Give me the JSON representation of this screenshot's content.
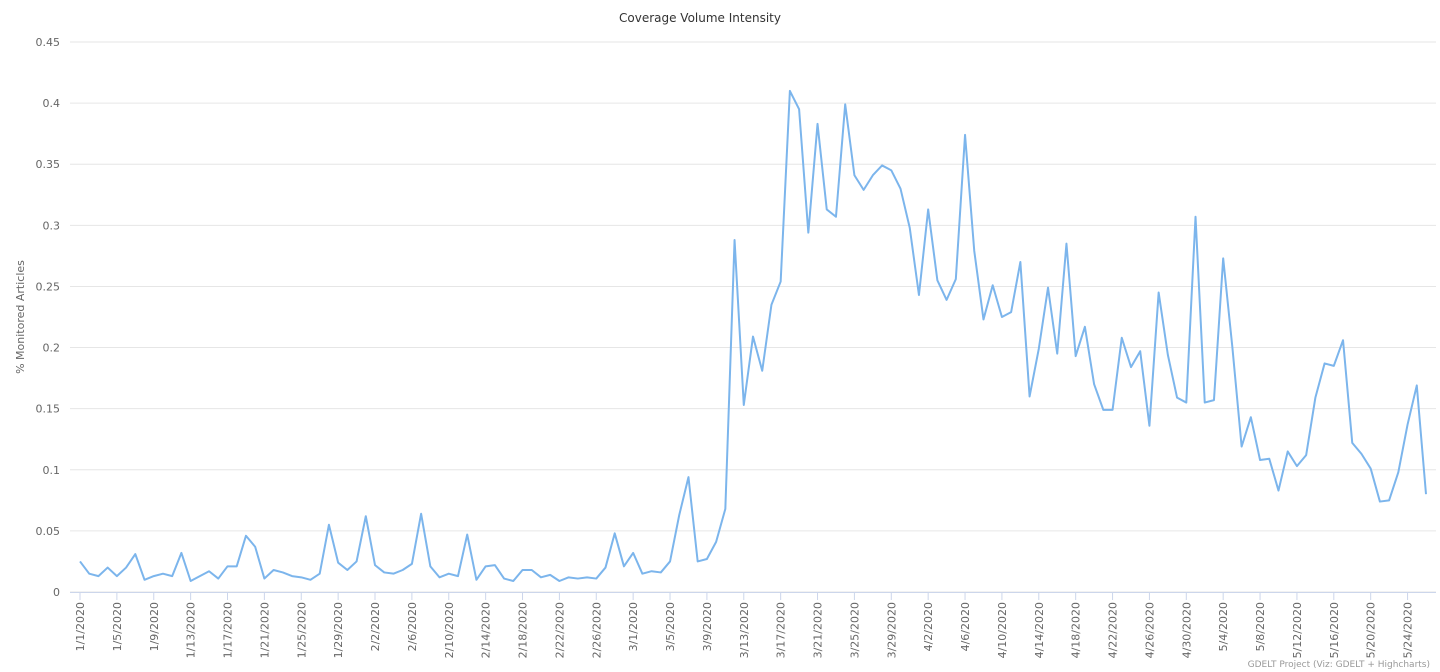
{
  "chart_data": {
    "type": "line",
    "title": "Coverage Volume Intensity",
    "y_label": "% Monitored Articles",
    "credit": "GDELT Project (Viz: GDELT + Highcharts)",
    "categories": [
      "1/1/2020",
      null,
      null,
      null,
      "1/5/2020",
      null,
      null,
      null,
      "1/9/2020",
      null,
      null,
      null,
      "1/13/2020",
      null,
      null,
      null,
      "1/17/2020",
      null,
      null,
      null,
      "1/21/2020",
      null,
      null,
      null,
      "1/25/2020",
      null,
      null,
      null,
      "1/29/2020",
      null,
      null,
      null,
      "2/2/2020",
      null,
      null,
      null,
      "2/6/2020",
      null,
      null,
      null,
      "2/10/2020",
      null,
      null,
      null,
      "2/14/2020",
      null,
      null,
      null,
      "2/18/2020",
      null,
      null,
      null,
      "2/22/2020",
      null,
      null,
      null,
      "2/26/2020",
      null,
      null,
      null,
      "3/1/2020",
      null,
      null,
      null,
      "3/5/2020",
      null,
      null,
      null,
      "3/9/2020",
      null,
      null,
      null,
      "3/13/2020",
      null,
      null,
      null,
      "3/17/2020",
      null,
      null,
      null,
      "3/21/2020",
      null,
      null,
      null,
      "3/25/2020",
      null,
      null,
      null,
      "3/29/2020",
      null,
      null,
      null,
      "4/2/2020",
      null,
      null,
      null,
      "4/6/2020",
      null,
      null,
      null,
      "4/10/2020",
      null,
      null,
      null,
      "4/14/2020",
      null,
      null,
      null,
      "4/18/2020",
      null,
      null,
      null,
      "4/22/2020",
      null,
      null,
      null,
      "4/26/2020",
      null,
      null,
      null,
      "4/30/2020",
      null,
      null,
      null,
      "5/4/2020",
      null,
      null,
      null,
      "5/8/2020",
      null,
      null,
      null,
      "5/12/2020",
      null,
      null,
      null,
      "5/16/2020",
      null,
      null,
      null,
      "5/20/2020",
      null,
      null,
      null,
      "5/24/2020",
      null,
      null
    ],
    "values": [
      0.025,
      0.015,
      0.013,
      0.02,
      0.013,
      0.02,
      0.031,
      0.01,
      0.013,
      0.015,
      0.013,
      0.032,
      0.009,
      0.013,
      0.017,
      0.011,
      0.021,
      0.021,
      0.046,
      0.037,
      0.011,
      0.018,
      0.016,
      0.013,
      0.012,
      0.01,
      0.015,
      0.055,
      0.024,
      0.018,
      0.025,
      0.062,
      0.022,
      0.016,
      0.015,
      0.018,
      0.023,
      0.064,
      0.021,
      0.012,
      0.015,
      0.013,
      0.047,
      0.01,
      0.021,
      0.022,
      0.011,
      0.009,
      0.018,
      0.018,
      0.012,
      0.014,
      0.009,
      0.012,
      0.011,
      0.012,
      0.011,
      0.02,
      0.048,
      0.021,
      0.032,
      0.015,
      0.017,
      0.016,
      0.025,
      0.063,
      0.094,
      0.025,
      0.027,
      0.041,
      0.068,
      0.288,
      0.153,
      0.209,
      0.181,
      0.235,
      0.254,
      0.41,
      0.395,
      0.294,
      0.383,
      0.313,
      0.307,
      0.399,
      0.341,
      0.329,
      0.341,
      0.349,
      0.345,
      0.33,
      0.298,
      0.243,
      0.313,
      0.255,
      0.239,
      0.256,
      0.374,
      0.279,
      0.223,
      0.251,
      0.225,
      0.229,
      0.27,
      0.16,
      0.199,
      0.249,
      0.195,
      0.285,
      0.193,
      0.217,
      0.17,
      0.149,
      0.149,
      0.208,
      0.184,
      0.197,
      0.136,
      0.245,
      0.194,
      0.159,
      0.155,
      0.307,
      0.155,
      0.157,
      0.273,
      0.2,
      0.119,
      0.143,
      0.108,
      0.109,
      0.083,
      0.115,
      0.103,
      0.112,
      0.159,
      0.187,
      0.185,
      0.206,
      0.122,
      0.113,
      0.101,
      0.074,
      0.075,
      0.098,
      0.137,
      0.169,
      0.08
    ],
    "color": "#7cb5ec",
    "ylim": [
      0,
      0.45
    ],
    "yticks": [
      0,
      0.05,
      0.1,
      0.15,
      0.2,
      0.25,
      0.3,
      0.35,
      0.4,
      0.45
    ],
    "grid": true
  }
}
